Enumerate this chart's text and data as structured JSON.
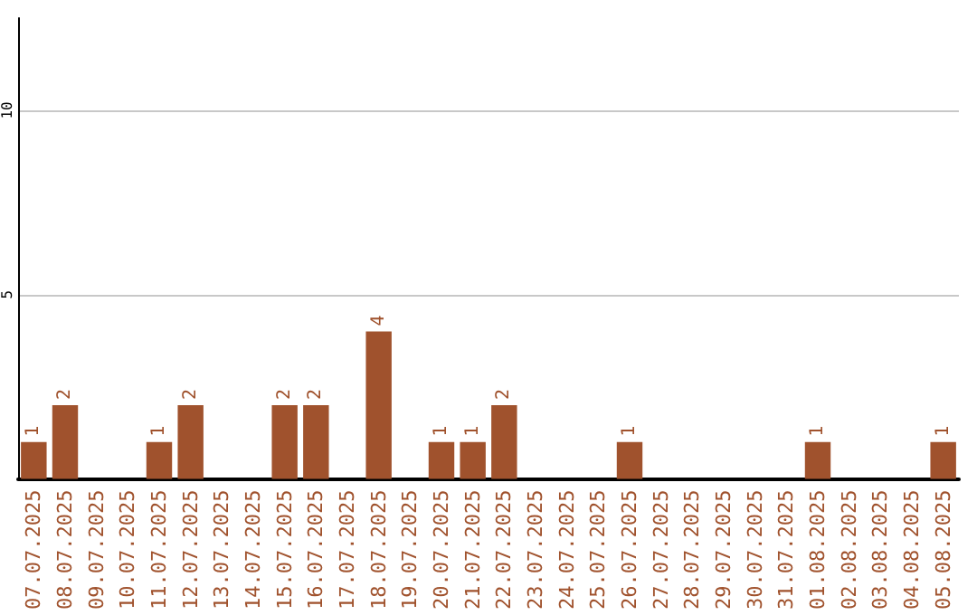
{
  "chart_data": {
    "type": "bar",
    "categories": [
      "07.07.2025",
      "08.07.2025",
      "09.07.2025",
      "10.07.2025",
      "11.07.2025",
      "12.07.2025",
      "13.07.2025",
      "14.07.2025",
      "15.07.2025",
      "16.07.2025",
      "17.07.2025",
      "18.07.2025",
      "19.07.2025",
      "20.07.2025",
      "21.07.2025",
      "22.07.2025",
      "23.07.2025",
      "24.07.2025",
      "25.07.2025",
      "26.07.2025",
      "27.07.2025",
      "28.07.2025",
      "29.07.2025",
      "30.07.2025",
      "31.07.2025",
      "01.08.2025",
      "02.08.2025",
      "03.08.2025",
      "04.08.2025",
      "05.08.2025"
    ],
    "series": [
      {
        "color": "#a0522d",
        "values": [
          1,
          2,
          0,
          0,
          1,
          2,
          0,
          0,
          2,
          2,
          0,
          4,
          0,
          1,
          1,
          2,
          0,
          0,
          0,
          1,
          0,
          0,
          0,
          0,
          0,
          1,
          0,
          0,
          0,
          1
        ],
        "value_labels": [
          "1",
          "2",
          null,
          null,
          "1",
          "2",
          null,
          null,
          "2",
          "2",
          null,
          "4",
          null,
          "1",
          "1",
          "2",
          null,
          null,
          null,
          "1",
          null,
          null,
          null,
          null,
          null,
          "1",
          null,
          null,
          null,
          "1"
        ]
      }
    ],
    "ylim": [
      0,
      12.5
    ],
    "yticks": [
      {
        "value": 0,
        "label": null
      },
      5,
      10
    ],
    "grid": "y"
  }
}
